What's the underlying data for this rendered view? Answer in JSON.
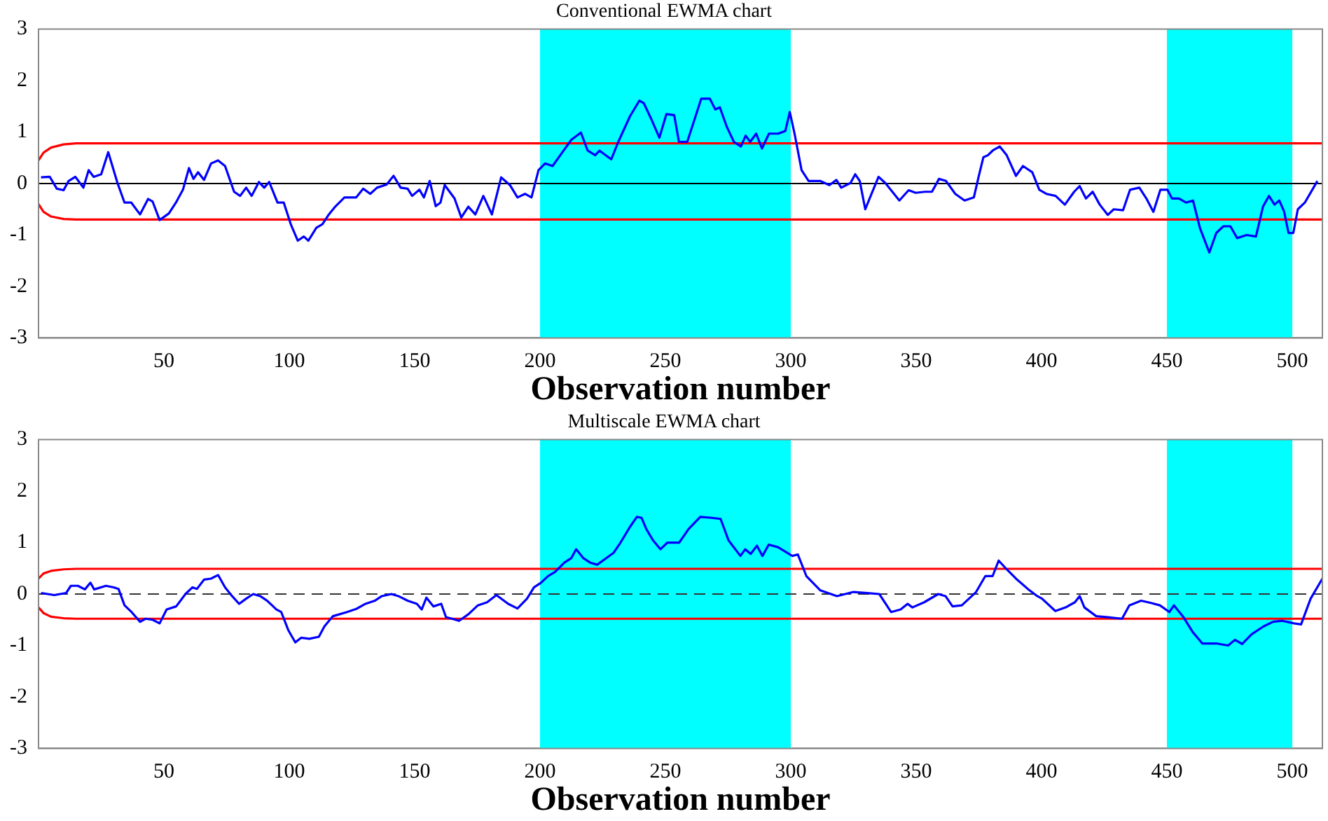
{
  "chart_data": [
    {
      "type": "line",
      "title": "Conventional EWMA chart",
      "xlabel": "Observation number",
      "xlim": [
        0,
        512
      ],
      "ylim": [
        -3,
        3
      ],
      "xticks": [
        50,
        100,
        150,
        200,
        250,
        300,
        350,
        400,
        450,
        500
      ],
      "yticks": [
        -3,
        -2,
        -1,
        0,
        1,
        2,
        3
      ],
      "grid": false,
      "legend": false,
      "marker": "none",
      "line_style": "solid",
      "bands": [
        {
          "axis": "x",
          "from": 200,
          "to": 300,
          "color": "#00ffff"
        },
        {
          "axis": "x",
          "from": 450,
          "to": 500,
          "color": "#00ffff"
        }
      ],
      "ref_lines": [
        {
          "axis": "y",
          "value": 0,
          "color": "#000000",
          "line_style": "solid"
        }
      ],
      "series": [
        {
          "color": "#0000ff",
          "x": [
            1,
            4.5,
            7.3,
            10,
            12,
            14.7,
            17.9,
            20,
            22,
            25,
            27.8,
            31.5,
            34.3,
            37,
            40.5,
            43.7,
            45.5,
            48.3,
            52,
            54.8,
            57.6,
            60,
            61.8,
            63.6,
            66,
            68.8,
            71.6,
            74.4,
            78,
            80.4,
            82.8,
            85,
            87.9,
            90,
            92,
            95.3,
            97.8,
            100.6,
            103.4,
            105.8,
            107.6,
            110.8,
            113.2,
            115.5,
            118.3,
            122,
            126.7,
            129.5,
            132.3,
            135,
            138.8,
            141.6,
            144.4,
            147.2,
            149,
            151.9,
            153.7,
            156,
            158.4,
            160.3,
            162,
            165.9,
            168.6,
            171.4,
            174.2,
            177.4,
            180.8,
            184.5,
            188,
            191,
            194,
            196.6,
            199.4,
            202,
            205,
            208.8,
            212.5,
            216.3,
            219,
            222,
            223.7,
            228.4,
            231.2,
            235.9,
            239.6,
            241.4,
            244.2,
            247.6,
            250.4,
            253.5,
            255.4,
            258.7,
            261.5,
            264.3,
            267.7,
            269.9,
            271.7,
            274.5,
            277.3,
            280.1,
            282,
            283.8,
            286.2,
            288.5,
            291.3,
            295,
            297.8,
            299.6,
            301.5,
            304.3,
            307.1,
            311.7,
            315.4,
            318.2,
            320.1,
            323.8,
            325.7,
            327.5,
            329.7,
            332.2,
            335,
            337.7,
            340.5,
            343.3,
            347,
            349.8,
            353.5,
            356.3,
            359.1,
            361.9,
            365.6,
            369.3,
            373,
            374.9,
            376.8,
            378.6,
            380.5,
            383.3,
            386.1,
            389.8,
            392.6,
            396.3,
            399.1,
            401.9,
            405.6,
            409.3,
            413,
            415.2,
            417.7,
            420.4,
            423.2,
            426.4,
            428.8,
            432.5,
            435.3,
            439,
            441.8,
            444.6,
            447.4,
            450.2,
            452,
            454.8,
            457.6,
            460.4,
            463.2,
            466.9,
            469.7,
            472.5,
            475.3,
            478,
            481.8,
            485.5,
            488.3,
            490.7,
            492.9,
            494.8,
            496.7,
            498.5,
            500.4,
            502.2,
            505,
            510
          ],
          "values": [
            0.12,
            0.13,
            -0.1,
            -0.13,
            0.05,
            0.13,
            -0.08,
            0.26,
            0.13,
            0.18,
            0.61,
            0.01,
            -0.37,
            -0.37,
            -0.6,
            -0.3,
            -0.35,
            -0.71,
            -0.58,
            -0.37,
            -0.12,
            0.3,
            0.09,
            0.22,
            0.07,
            0.39,
            0.45,
            0.34,
            -0.16,
            -0.24,
            -0.08,
            -0.24,
            0.03,
            -0.08,
            0.03,
            -0.37,
            -0.37,
            -0.79,
            -1.11,
            -1.03,
            -1.11,
            -0.86,
            -0.79,
            -0.62,
            -0.45,
            -0.27,
            -0.27,
            -0.1,
            -0.2,
            -0.08,
            -0.02,
            0.15,
            -0.08,
            -0.1,
            -0.24,
            -0.12,
            -0.27,
            0.05,
            -0.44,
            -0.37,
            -0.03,
            -0.29,
            -0.66,
            -0.45,
            -0.6,
            -0.24,
            -0.6,
            0.12,
            -0.03,
            -0.27,
            -0.2,
            -0.27,
            0.26,
            0.39,
            0.34,
            0.6,
            0.85,
            0.99,
            0.64,
            0.55,
            0.64,
            0.47,
            0.81,
            1.31,
            1.61,
            1.56,
            1.27,
            0.89,
            1.35,
            1.33,
            0.81,
            0.81,
            1.23,
            1.65,
            1.65,
            1.44,
            1.48,
            1.1,
            0.81,
            0.72,
            0.93,
            0.81,
            0.97,
            0.68,
            0.97,
            0.97,
            1.02,
            1.39,
            0.97,
            0.26,
            0.05,
            0.05,
            -0.03,
            0.07,
            -0.08,
            0.01,
            0.18,
            0.05,
            -0.5,
            -0.2,
            0.13,
            0.01,
            -0.16,
            -0.33,
            -0.13,
            -0.18,
            -0.16,
            -0.16,
            0.09,
            0.05,
            -0.2,
            -0.33,
            -0.27,
            0.13,
            0.51,
            0.55,
            0.64,
            0.72,
            0.55,
            0.15,
            0.34,
            0.22,
            -0.12,
            -0.2,
            -0.24,
            -0.41,
            -0.16,
            -0.05,
            -0.29,
            -0.16,
            -0.41,
            -0.61,
            -0.5,
            -0.52,
            -0.12,
            -0.08,
            -0.29,
            -0.55,
            -0.12,
            -0.12,
            -0.29,
            -0.29,
            -0.37,
            -0.33,
            -0.87,
            -1.34,
            -0.96,
            -0.83,
            -0.83,
            -1.06,
            -1,
            -1.03,
            -0.45,
            -0.24,
            -0.41,
            -0.33,
            -0.54,
            -0.96,
            -0.96,
            -0.5,
            -0.37,
            0.05
          ]
        },
        {
          "color": "#ff0000",
          "x": [
            0,
            2,
            5,
            10,
            15,
            512
          ],
          "values": [
            0.45,
            0.6,
            0.7,
            0.76,
            0.78,
            0.78
          ]
        },
        {
          "color": "#ff0000",
          "x": [
            0,
            2,
            5,
            10,
            15,
            512
          ],
          "values": [
            -0.4,
            -0.55,
            -0.64,
            -0.69,
            -0.7,
            -0.7
          ]
        }
      ]
    },
    {
      "type": "line",
      "title": "Multiscale EWMA chart",
      "xlabel": "Observation number",
      "xlim": [
        0,
        512
      ],
      "ylim": [
        -3,
        3
      ],
      "xticks": [
        50,
        100,
        150,
        200,
        250,
        300,
        350,
        400,
        450,
        500
      ],
      "yticks": [
        -3,
        -2,
        -1,
        0,
        1,
        2,
        3
      ],
      "grid": false,
      "legend": false,
      "marker": "none",
      "line_style": "solid",
      "bands": [
        {
          "axis": "x",
          "from": 200,
          "to": 300,
          "color": "#00ffff"
        },
        {
          "axis": "x",
          "from": 450,
          "to": 500,
          "color": "#00ffff"
        }
      ],
      "ref_lines": [
        {
          "axis": "y",
          "value": 0,
          "color": "#333333",
          "line_style": "dashed"
        }
      ],
      "series": [
        {
          "color": "#0000ff",
          "x": [
            1,
            6.3,
            11,
            12.9,
            15.7,
            18.5,
            20.7,
            22.2,
            26.9,
            30,
            31.9,
            34.3,
            37.1,
            40.5,
            42.7,
            45.5,
            48.3,
            51.1,
            54.9,
            58.6,
            61.4,
            63.2,
            66,
            68.8,
            71.6,
            74.4,
            77.2,
            80,
            82.8,
            85.6,
            88.4,
            91.2,
            94.9,
            96.8,
            99.6,
            102.4,
            104.7,
            108,
            111.8,
            114,
            117.4,
            123,
            126.7,
            130.4,
            134.1,
            136.9,
            140.7,
            143.5,
            147.2,
            150.9,
            152.8,
            154.7,
            157.5,
            160.6,
            162.5,
            164.9,
            167.7,
            171.5,
            175.2,
            178.9,
            182.6,
            187.3,
            191,
            194.8,
            197.6,
            200.4,
            203.2,
            206,
            209.7,
            212.5,
            214.4,
            217.2,
            220,
            222.8,
            226.5,
            229.3,
            232.1,
            235.8,
            238.6,
            240.5,
            242.4,
            245.1,
            248,
            250.8,
            255.5,
            259.2,
            263.9,
            268.6,
            272,
            275.2,
            279.9,
            281.8,
            284,
            286.5,
            288.7,
            291.2,
            294.9,
            300.6,
            302.8,
            306.2,
            311.8,
            318.4,
            325,
            330.6,
            335.3,
            340,
            343.8,
            346.6,
            348.5,
            353.2,
            358.8,
            361.7,
            364.5,
            368.2,
            373.9,
            377.6,
            380.5,
            382.9,
            386.1,
            389.8,
            394.5,
            398.3,
            400.2,
            405.5,
            409.6,
            413.3,
            415.2,
            417.1,
            421.8,
            426.5,
            432.1,
            435,
            439.7,
            443.4,
            447.2,
            451,
            452.8,
            456.6,
            460.3,
            464.1,
            469.7,
            474.4,
            477.1,
            480,
            483.8,
            488.5,
            492.3,
            496,
            500.7,
            503.5,
            507.3,
            512
          ],
          "values": [
            0.02,
            -0.02,
            0.02,
            0.16,
            0.16,
            0.09,
            0.22,
            0.09,
            0.16,
            0.13,
            0.1,
            -0.22,
            -0.35,
            -0.54,
            -0.48,
            -0.5,
            -0.57,
            -0.3,
            -0.24,
            0,
            0.13,
            0.1,
            0.28,
            0.3,
            0.37,
            0.13,
            -0.04,
            -0.19,
            -0.09,
            0,
            -0.04,
            -0.13,
            -0.3,
            -0.35,
            -0.7,
            -0.94,
            -0.85,
            -0.87,
            -0.83,
            -0.63,
            -0.43,
            -0.35,
            -0.29,
            -0.19,
            -0.13,
            -0.04,
            0,
            -0.04,
            -0.13,
            -0.19,
            -0.3,
            -0.07,
            -0.24,
            -0.19,
            -0.45,
            -0.48,
            -0.52,
            -0.39,
            -0.22,
            -0.16,
            -0.02,
            -0.19,
            -0.28,
            -0.09,
            0.13,
            0.22,
            0.35,
            0.43,
            0.61,
            0.7,
            0.87,
            0.7,
            0.61,
            0.57,
            0.7,
            0.8,
            1,
            1.3,
            1.5,
            1.48,
            1.26,
            1.04,
            0.87,
            1,
            1,
            1.26,
            1.5,
            1.48,
            1.46,
            1.04,
            0.74,
            0.87,
            0.78,
            0.94,
            0.74,
            0.96,
            0.91,
            0.74,
            0.77,
            0.35,
            0.07,
            -0.04,
            0.04,
            0.02,
            0,
            -0.35,
            -0.3,
            -0.19,
            -0.26,
            -0.16,
            0,
            -0.04,
            -0.24,
            -0.22,
            0.04,
            0.35,
            0.35,
            0.65,
            0.48,
            0.3,
            0.1,
            -0.04,
            -0.09,
            -0.33,
            -0.26,
            -0.16,
            -0.04,
            -0.26,
            -0.43,
            -0.45,
            -0.48,
            -0.22,
            -0.13,
            -0.17,
            -0.22,
            -0.35,
            -0.22,
            -0.45,
            -0.74,
            -0.96,
            -0.96,
            -1,
            -0.89,
            -0.97,
            -0.78,
            -0.63,
            -0.54,
            -0.52,
            -0.57,
            -0.59,
            -0.09,
            0.3
          ]
        },
        {
          "color": "#ff0000",
          "x": [
            0,
            2,
            5,
            10,
            15,
            512
          ],
          "values": [
            0.3,
            0.4,
            0.45,
            0.48,
            0.49,
            0.49
          ]
        },
        {
          "color": "#ff0000",
          "x": [
            0,
            2,
            5,
            10,
            15,
            512
          ],
          "values": [
            -0.26,
            -0.37,
            -0.44,
            -0.47,
            -0.48,
            -0.48
          ]
        }
      ]
    }
  ]
}
